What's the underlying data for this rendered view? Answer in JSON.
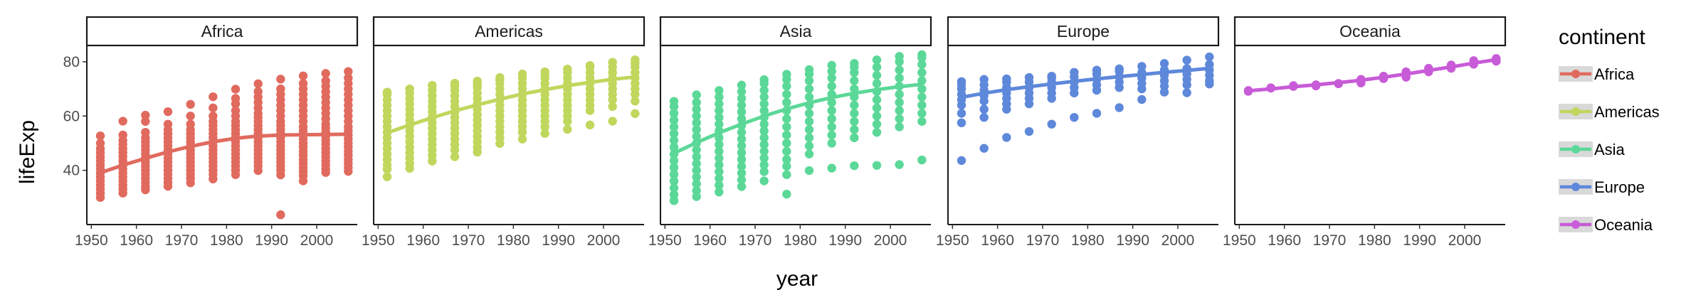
{
  "chart_data": {
    "type": "scatter",
    "facet_variable": "continent",
    "panels": [
      "Africa",
      "Americas",
      "Asia",
      "Europe",
      "Oceania"
    ],
    "xlabel": "year",
    "ylabel": "lifeExp",
    "xlim": [
      1949,
      2009
    ],
    "ylim": [
      20,
      86
    ],
    "x_ticks": [
      1950,
      1960,
      1970,
      1980,
      1990,
      2000
    ],
    "y_ticks": [
      40,
      60,
      80
    ],
    "legend": {
      "title": "continent",
      "position": "right"
    },
    "colors": {
      "Africa": "#E16A5E",
      "Americas": "#BFD75C",
      "Asia": "#5BD898",
      "Europe": "#5E88DA",
      "Oceania": "#C85BD8"
    },
    "years": [
      1952,
      1957,
      1962,
      1967,
      1972,
      1977,
      1982,
      1987,
      1992,
      1997,
      2002,
      2007
    ],
    "series": [
      {
        "name": "Africa",
        "smooth": [
          39.1,
          41.9,
          44.4,
          46.8,
          48.8,
          50.5,
          51.8,
          52.6,
          53.0,
          53.1,
          53.2,
          53.3
        ],
        "points": [
          [
            1952,
            [
              30.0,
              31.5,
              33.0,
              34.5,
              36.0,
              37.5,
              39.0,
              40.5,
              42.0,
              43.5,
              45.0,
              46.5,
              48.0,
              50.0,
              52.7
            ]
          ],
          [
            1957,
            [
              31.6,
              33.0,
              34.5,
              36.0,
              37.5,
              39.0,
              40.5,
              42.0,
              43.5,
              45.0,
              46.5,
              48.0,
              49.5,
              51.0,
              53.0,
              58.1
            ]
          ],
          [
            1962,
            [
              32.8,
              34.0,
              35.5,
              37.0,
              38.5,
              40.0,
              41.5,
              43.0,
              44.5,
              46.0,
              47.5,
              49.0,
              50.5,
              52.0,
              54.0,
              58.0,
              60.3
            ]
          ],
          [
            1967,
            [
              34.1,
              35.5,
              37.0,
              38.5,
              40.0,
              41.5,
              43.0,
              44.5,
              46.0,
              47.5,
              49.0,
              50.5,
              52.0,
              53.5,
              55.0,
              57.0,
              61.6
            ]
          ],
          [
            1972,
            [
              35.4,
              37.0,
              38.5,
              40.0,
              41.5,
              43.0,
              44.5,
              46.0,
              47.5,
              49.0,
              50.5,
              52.0,
              53.5,
              55.0,
              57.0,
              60.0,
              64.3
            ]
          ],
          [
            1977,
            [
              36.8,
              38.5,
              40.0,
              41.5,
              43.0,
              44.5,
              46.0,
              47.5,
              49.0,
              50.5,
              52.0,
              53.5,
              55.0,
              56.5,
              58.0,
              60.0,
              63.0,
              67.1
            ]
          ],
          [
            1982,
            [
              38.4,
              40.0,
              41.5,
              43.0,
              44.5,
              46.0,
              47.5,
              49.0,
              50.5,
              52.0,
              53.5,
              55.0,
              56.5,
              58.0,
              60.0,
              62.0,
              64.5,
              66.5,
              69.9
            ]
          ],
          [
            1987,
            [
              39.9,
              41.5,
              43.0,
              44.5,
              46.0,
              47.5,
              49.0,
              50.5,
              52.0,
              53.5,
              55.0,
              56.5,
              58.0,
              59.5,
              61.0,
              63.0,
              65.0,
              67.0,
              69.0,
              71.9
            ]
          ],
          [
            1992,
            [
              23.6,
              38.3,
              40.0,
              41.5,
              43.0,
              44.5,
              46.0,
              47.5,
              49.0,
              50.5,
              52.0,
              53.5,
              55.0,
              56.5,
              58.0,
              60.0,
              62.0,
              64.0,
              66.0,
              68.0,
              70.0,
              73.6
            ]
          ],
          [
            1997,
            [
              36.1,
              38.0,
              39.5,
              41.0,
              42.5,
              44.0,
              45.5,
              47.0,
              48.5,
              50.0,
              51.5,
              53.0,
              54.5,
              56.0,
              58.0,
              60.0,
              62.0,
              64.0,
              66.0,
              68.0,
              70.0,
              72.0,
              74.8
            ]
          ],
          [
            2002,
            [
              39.2,
              40.5,
              42.0,
              43.5,
              45.0,
              46.5,
              48.0,
              49.5,
              51.0,
              52.5,
              54.0,
              55.5,
              57.0,
              59.0,
              61.0,
              63.0,
              65.0,
              67.0,
              69.0,
              71.0,
              73.0,
              75.7
            ]
          ],
          [
            2007,
            [
              39.6,
              41.0,
              42.5,
              44.0,
              45.5,
              47.0,
              48.5,
              50.0,
              51.5,
              53.0,
              54.5,
              56.0,
              58.0,
              60.0,
              62.0,
              64.0,
              66.0,
              68.0,
              70.0,
              72.0,
              74.0,
              76.4
            ]
          ]
        ]
      },
      {
        "name": "Americas",
        "smooth": [
          53.8,
          56.7,
          59.4,
          61.9,
          64.1,
          66.2,
          68.1,
          69.7,
          71.2,
          72.4,
          73.5,
          74.4
        ],
        "points": [
          [
            1952,
            [
              37.6,
              40.4,
              42.0,
              44.0,
              46.0,
              48.0,
              50.0,
              52.0,
              54.0,
              56.0,
              58.0,
              60.0,
              62.0,
              64.0,
              66.0,
              68.0,
              68.8
            ]
          ],
          [
            1957,
            [
              40.7,
              42.5,
              44.5,
              46.5,
              48.5,
              50.5,
              52.5,
              54.5,
              56.5,
              58.5,
              60.5,
              62.5,
              64.5,
              66.5,
              68.5,
              70.0
            ]
          ],
          [
            1962,
            [
              43.4,
              45.5,
              47.5,
              49.5,
              51.5,
              53.5,
              55.5,
              57.5,
              59.5,
              61.5,
              63.5,
              65.5,
              67.5,
              69.5,
              71.3
            ]
          ],
          [
            1967,
            [
              45.0,
              47.5,
              49.5,
              51.5,
              53.5,
              55.5,
              57.5,
              59.5,
              61.5,
              63.5,
              65.5,
              67.5,
              69.5,
              71.0,
              72.1
            ]
          ],
          [
            1972,
            [
              46.7,
              48.5,
              50.5,
              52.5,
              54.5,
              56.5,
              58.5,
              60.5,
              62.5,
              64.5,
              66.5,
              68.5,
              70.5,
              72.0,
              72.9
            ]
          ],
          [
            1977,
            [
              49.9,
              52.0,
              54.0,
              56.0,
              58.0,
              60.0,
              62.0,
              64.0,
              66.0,
              68.0,
              70.0,
              72.0,
              73.4,
              74.2
            ]
          ],
          [
            1982,
            [
              51.5,
              54.0,
              56.0,
              58.0,
              60.0,
              62.0,
              64.0,
              66.0,
              68.0,
              70.0,
              72.0,
              74.0,
              75.5
            ]
          ],
          [
            1987,
            [
              53.6,
              56.0,
              58.0,
              60.0,
              62.0,
              64.0,
              66.0,
              68.0,
              70.0,
              72.0,
              74.0,
              75.5,
              76.3
            ]
          ],
          [
            1992,
            [
              55.1,
              58.0,
              60.0,
              62.0,
              64.0,
              66.0,
              68.0,
              70.0,
              72.0,
              74.0,
              76.0,
              77.3
            ]
          ],
          [
            1997,
            [
              56.7,
              62.0,
              64.0,
              66.0,
              68.0,
              70.0,
              72.0,
              74.0,
              76.0,
              78.0,
              78.6
            ]
          ],
          [
            2002,
            [
              58.1,
              63.5,
              66.0,
              68.0,
              70.0,
              72.0,
              74.0,
              76.0,
              78.0,
              79.8
            ]
          ],
          [
            2007,
            [
              60.9,
              65.5,
              68.0,
              70.0,
              72.0,
              74.0,
              76.0,
              78.0,
              79.5,
              80.7
            ]
          ]
        ]
      },
      {
        "name": "Asia",
        "smooth": [
          46.3,
          50.2,
          53.8,
          57.0,
          60.0,
          62.6,
          64.9,
          66.8,
          68.4,
          69.7,
          70.8,
          71.7
        ],
        "points": [
          [
            1952,
            [
              28.8,
              31.0,
              33.5,
              36.0,
              38.5,
              41.0,
              43.5,
              46.0,
              48.5,
              51.0,
              53.5,
              56.0,
              58.5,
              61.0,
              63.5,
              65.4
            ]
          ],
          [
            1957,
            [
              30.3,
              32.5,
              35.0,
              37.5,
              40.0,
              42.5,
              45.0,
              47.5,
              50.0,
              52.5,
              55.0,
              57.5,
              60.0,
              62.5,
              65.0,
              67.8
            ]
          ],
          [
            1962,
            [
              32.0,
              34.5,
              37.0,
              39.5,
              42.0,
              44.5,
              47.0,
              49.5,
              52.0,
              54.5,
              57.0,
              59.5,
              62.0,
              64.5,
              67.0,
              69.4
            ]
          ],
          [
            1967,
            [
              34.0,
              36.5,
              39.0,
              41.5,
              44.0,
              46.5,
              49.0,
              51.5,
              54.0,
              56.5,
              59.0,
              61.5,
              64.0,
              66.5,
              69.0,
              71.4
            ]
          ],
          [
            1972,
            [
              36.1,
              39.5,
              42.0,
              44.5,
              47.0,
              49.5,
              52.0,
              54.5,
              57.0,
              59.5,
              62.0,
              64.5,
              67.0,
              69.5,
              72.0,
              73.4
            ]
          ],
          [
            1977,
            [
              31.2,
              38.4,
              41.5,
              44.0,
              47.0,
              50.0,
              53.0,
              56.0,
              59.0,
              62.0,
              65.0,
              68.0,
              71.0,
              73.5,
              75.4
            ]
          ],
          [
            1982,
            [
              39.9,
              46.0,
              49.0,
              52.0,
              55.0,
              58.0,
              61.0,
              64.0,
              67.0,
              70.0,
              73.0,
              75.5,
              77.1
            ]
          ],
          [
            1987,
            [
              40.8,
              50.0,
              53.0,
              56.0,
              59.0,
              62.0,
              65.0,
              68.0,
              71.0,
              74.0,
              76.5,
              78.7
            ]
          ],
          [
            1992,
            [
              41.7,
              52.0,
              55.0,
              58.0,
              61.0,
              64.0,
              67.0,
              70.0,
              73.0,
              76.0,
              78.0,
              79.4
            ]
          ],
          [
            1997,
            [
              41.8,
              54.0,
              57.0,
              60.0,
              63.0,
              66.0,
              69.0,
              72.0,
              75.0,
              78.0,
              80.7
            ]
          ],
          [
            2002,
            [
              42.1,
              56.0,
              59.0,
              62.0,
              65.0,
              68.0,
              71.0,
              74.0,
              77.0,
              80.0,
              82.0
            ]
          ],
          [
            2007,
            [
              43.8,
              58.0,
              61.0,
              64.0,
              67.0,
              70.0,
              73.0,
              76.0,
              79.0,
              81.5,
              82.6
            ]
          ]
        ]
      },
      {
        "name": "Europe",
        "smooth": [
          66.9,
          68.4,
          69.7,
          70.8,
          71.8,
          72.8,
          73.7,
          74.5,
          75.3,
          76.1,
          76.8,
          77.6
        ],
        "points": [
          [
            1952,
            [
              43.6,
              57.5,
              61.0,
              64.0,
              66.0,
              68.0,
              70.0,
              71.5,
              72.7
            ]
          ],
          [
            1957,
            [
              48.1,
              59.5,
              62.5,
              65.5,
              67.5,
              69.5,
              71.5,
              73.5
            ]
          ],
          [
            1962,
            [
              52.1,
              62.5,
              64.5,
              66.5,
              68.5,
              70.5,
              72.5,
              73.7
            ]
          ],
          [
            1967,
            [
              54.3,
              64.5,
              66.5,
              68.5,
              70.5,
              72.5,
              74.2
            ]
          ],
          [
            1972,
            [
              57.0,
              66.5,
              68.5,
              70.5,
              72.5,
              74.0,
              74.7
            ]
          ],
          [
            1977,
            [
              59.5,
              68.5,
              70.5,
              72.5,
              74.5,
              76.1
            ]
          ],
          [
            1982,
            [
              61.0,
              69.5,
              71.5,
              73.5,
              75.5,
              76.9
            ]
          ],
          [
            1987,
            [
              63.1,
              70.5,
              72.5,
              74.5,
              76.5,
              77.4
            ]
          ],
          [
            1992,
            [
              66.1,
              70.0,
              72.0,
              74.0,
              76.0,
              78.3
            ]
          ],
          [
            1997,
            [
              68.8,
              71.0,
              73.0,
              75.0,
              77.0,
              79.4
            ]
          ],
          [
            2002,
            [
              68.6,
              71.5,
              73.5,
              75.5,
              77.5,
              80.6
            ]
          ],
          [
            2007,
            [
              71.8,
              73.0,
              75.0,
              77.0,
              79.0,
              81.8
            ]
          ]
        ]
      },
      {
        "name": "Oceania",
        "smooth": [
          69.3,
          70.0,
          70.8,
          71.5,
          72.3,
          73.2,
          74.3,
          75.5,
          76.8,
          78.1,
          79.5,
          80.8
        ],
        "points": [
          [
            1952,
            [
              69.1,
              69.4
            ]
          ],
          [
            1957,
            [
              70.3,
              70.4
            ]
          ],
          [
            1962,
            [
              70.9,
              71.2
            ]
          ],
          [
            1967,
            [
              71.1,
              71.5
            ]
          ],
          [
            1972,
            [
              71.9,
              72.0
            ]
          ],
          [
            1977,
            [
              72.2,
              73.5
            ]
          ],
          [
            1982,
            [
              73.8,
              74.7
            ]
          ],
          [
            1987,
            [
              74.3,
              76.3
            ]
          ],
          [
            1992,
            [
              76.3,
              77.6
            ]
          ],
          [
            1997,
            [
              77.6,
              78.8
            ]
          ],
          [
            2002,
            [
              79.1,
              80.4
            ]
          ],
          [
            2007,
            [
              80.2,
              81.2
            ]
          ]
        ]
      }
    ]
  }
}
